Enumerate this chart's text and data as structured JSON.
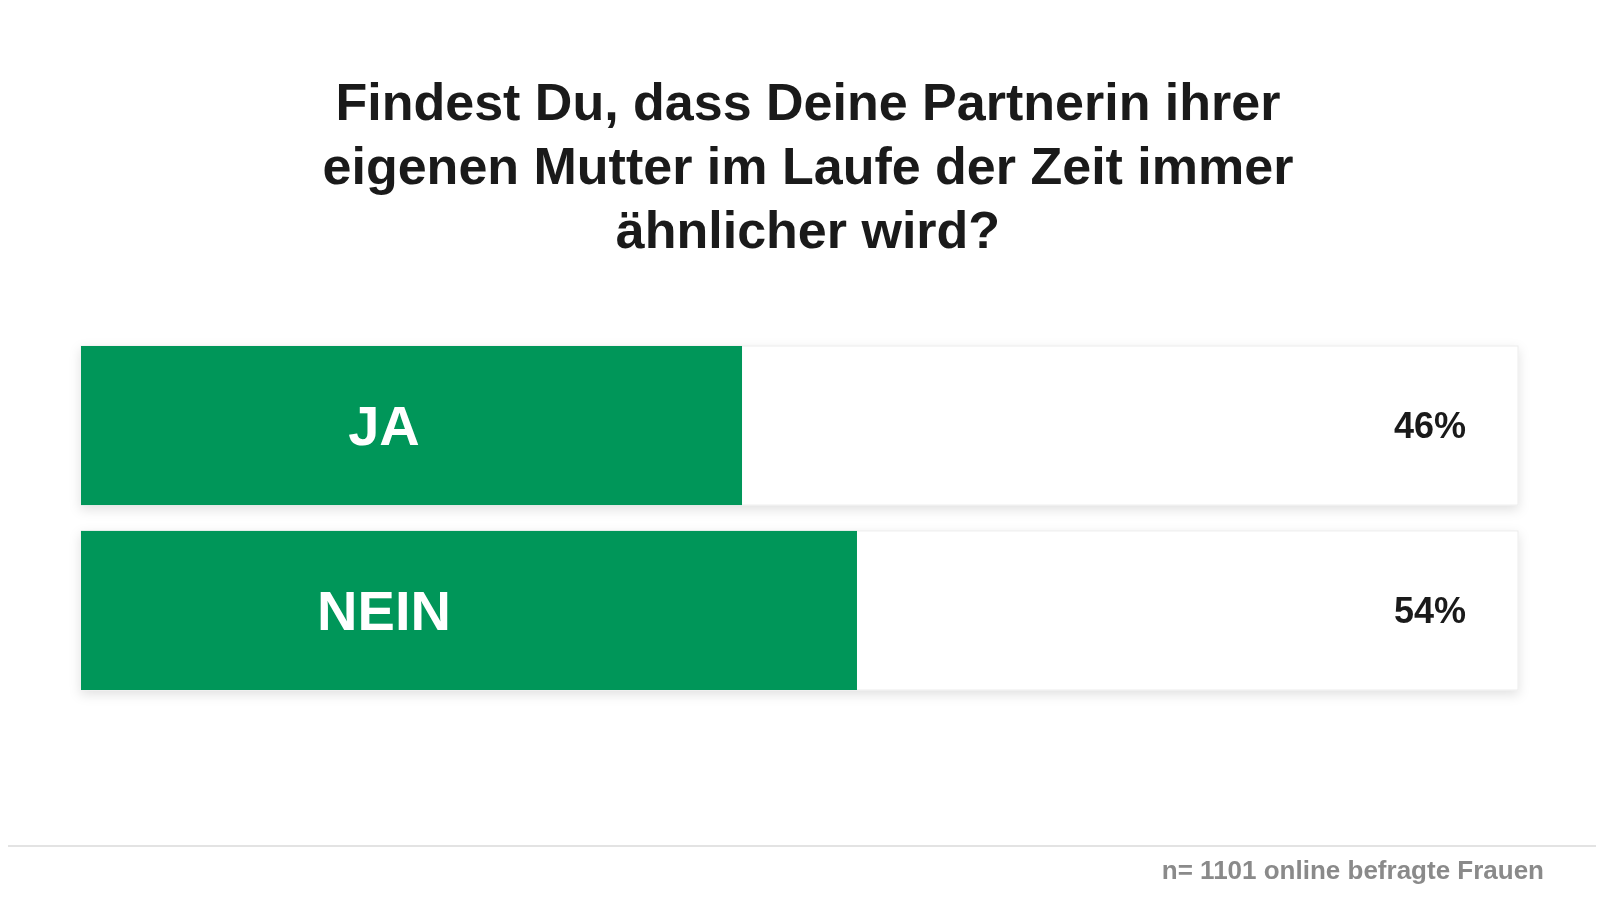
{
  "chart_data": {
    "type": "bar",
    "orientation": "horizontal",
    "title": "Findest Du, dass Deine Partnerin ihrer eigenen Mutter im Laufe der Zeit immer ähnlicher wird?",
    "categories": [
      "JA",
      "NEIN"
    ],
    "values": [
      46,
      54
    ],
    "value_labels": [
      "46%",
      "54%"
    ],
    "color": "#009659",
    "xlim": [
      0,
      100
    ],
    "annotations": [
      "n= 1101 online befragte Frauen"
    ]
  }
}
